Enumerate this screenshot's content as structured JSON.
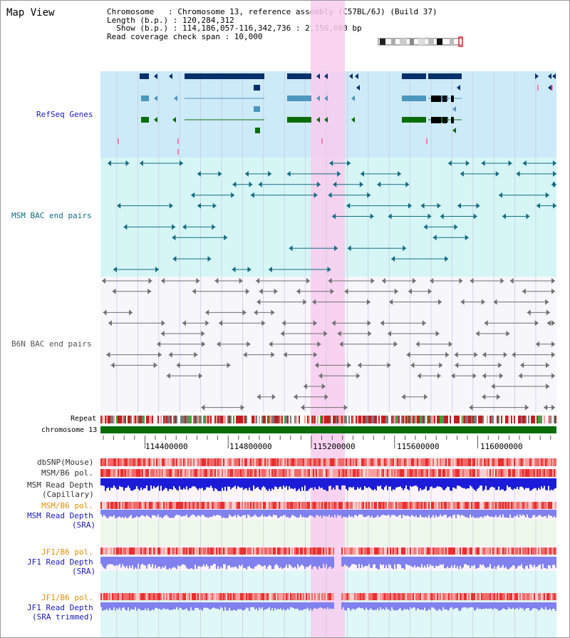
{
  "title": "Map View",
  "header": {
    "line1": "Chromosome   : Chromosome 13, reference assembly (C57BL/6J) (Build 37)",
    "line2": "Length (b.p.) : 120,284,312",
    "line3": "  Show (b.p.) : 114,186,057-116,342,736 : 2,156,680 bp",
    "line4": "Read coverage check span : 10,000"
  },
  "tracks": {
    "refseq": "RefSeq Genes",
    "msm_bac": "MSM BAC end pairs",
    "b6n_bac": "B6N BAC end pairs",
    "repeat": "Repeat",
    "chromosome": "chromosome 13",
    "dbsnp": "dbSNP(Mouse)",
    "msm_b6_pol_1": "MSM/B6 pol.",
    "msm_depth_cap_1": "MSM Read Depth",
    "msm_depth_cap_2": "(Capillary)",
    "msm_b6_pol_2": "MSM/B6 pol.",
    "msm_depth_sra_1": "MSM Read Depth",
    "msm_depth_sra_2": "(SRA)",
    "jf1_b6_pol_1": "JF1/B6 pol.",
    "jf1_depth_sra_1": "JF1 Read Depth",
    "jf1_depth_sra_2": "(SRA)",
    "jf1_b6_pol_2": "JF1/B6 pol.",
    "jf1_depth_trim_1": "JF1 Read Depth",
    "jf1_depth_trim_2": "(SRA trimmed)"
  },
  "axis": {
    "ticks": [
      "114400000",
      "114800000",
      "115200000",
      "115600000",
      "116000000"
    ]
  },
  "colors": {
    "refseq_bg": "#cdeaf8",
    "msm_bg": "#d6f6f6",
    "highlight": "#f8ccee",
    "navy": "#06306a",
    "steel": "#4d96be",
    "green": "#0a6d0a",
    "teal": "#156c82",
    "gray": "#707070",
    "chrom": "#0a6d0a",
    "depth": "#1c1cd8",
    "depth_light": "#8080ee",
    "pol_red": "#e84848"
  }
}
